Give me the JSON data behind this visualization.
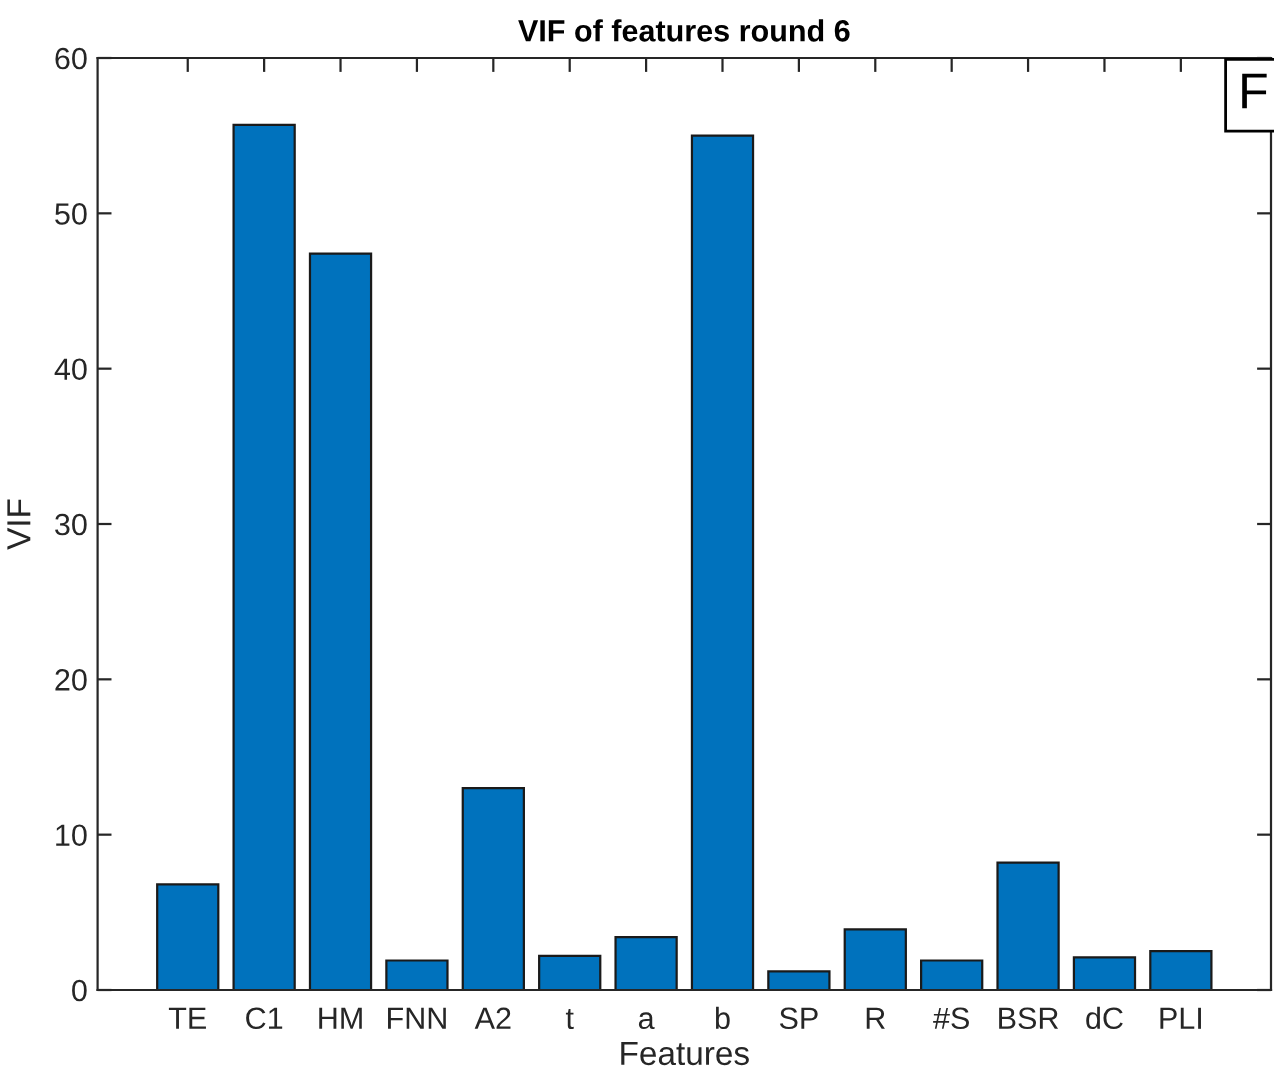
{
  "chart_data": {
    "type": "bar",
    "title": "VIF of features round 6",
    "xlabel": "Features",
    "ylabel": "VIF",
    "categories": [
      "TE",
      "C1",
      "HM",
      "FNN",
      "A2",
      "t",
      "a",
      "b",
      "SP",
      "R",
      "#S",
      "BSR",
      "dC",
      "PLI"
    ],
    "values": [
      6.8,
      55.7,
      47.4,
      1.9,
      13.0,
      2.2,
      3.4,
      55.0,
      1.2,
      3.9,
      1.9,
      8.2,
      2.1,
      2.5
    ],
    "color": "#0072bd",
    "ylim": [
      0,
      60
    ],
    "yticks": [
      0,
      10,
      20,
      30,
      40,
      50,
      60
    ],
    "grid": false,
    "annotations": [
      "F"
    ]
  }
}
